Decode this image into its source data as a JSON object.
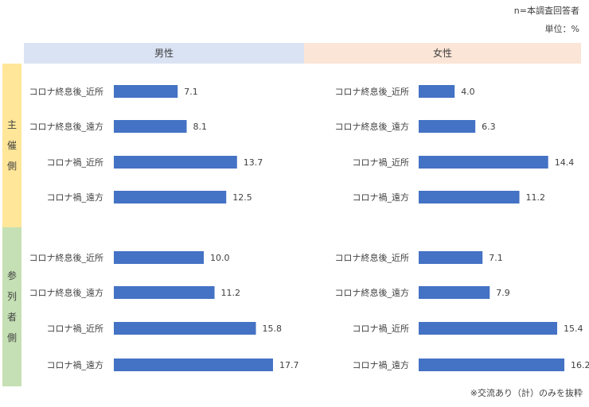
{
  "notes": {
    "sample": "n=本調査回答者",
    "unit": "単位：%",
    "footnote": "※交流あり（計）のみを抜粋"
  },
  "headers": {
    "male": "男性",
    "female": "女性"
  },
  "groups": [
    {
      "label": [
        "主",
        "催",
        "側"
      ]
    },
    {
      "label": [
        "参",
        "列",
        "者",
        "側"
      ]
    }
  ],
  "colors": {
    "bar": "#4472c4",
    "male_header": "#dae3f3",
    "female_header": "#fbe5d6",
    "host_band": "#ffe699",
    "participant_band": "#c5e0b4"
  },
  "chart_data": [
    {
      "type": "bar",
      "orientation": "horizontal",
      "panel": "男性",
      "group": "主催側",
      "categories": [
        "コロナ終息後_近所",
        "コロナ終息後_遠方",
        "コロナ禍_近所",
        "コロナ禍_遠方"
      ],
      "values": [
        7.1,
        8.1,
        13.7,
        12.5
      ]
    },
    {
      "type": "bar",
      "orientation": "horizontal",
      "panel": "女性",
      "group": "主催側",
      "categories": [
        "コロナ終息後_近所",
        "コロナ終息後_遠方",
        "コロナ禍_近所",
        "コロナ禍_遠方"
      ],
      "values": [
        4.0,
        6.3,
        14.4,
        11.2
      ]
    },
    {
      "type": "bar",
      "orientation": "horizontal",
      "panel": "男性",
      "group": "参列者側",
      "categories": [
        "コロナ終息後_近所",
        "コロナ終息後_遠方",
        "コロナ禍_近所",
        "コロナ禍_遠方"
      ],
      "values": [
        10.0,
        11.2,
        15.8,
        17.7
      ]
    },
    {
      "type": "bar",
      "orientation": "horizontal",
      "panel": "女性",
      "group": "参列者側",
      "categories": [
        "コロナ終息後_近所",
        "コロナ終息後_遠方",
        "コロナ禍_近所",
        "コロナ禍_遠方"
      ],
      "values": [
        7.1,
        7.9,
        15.4,
        16.2
      ]
    }
  ]
}
